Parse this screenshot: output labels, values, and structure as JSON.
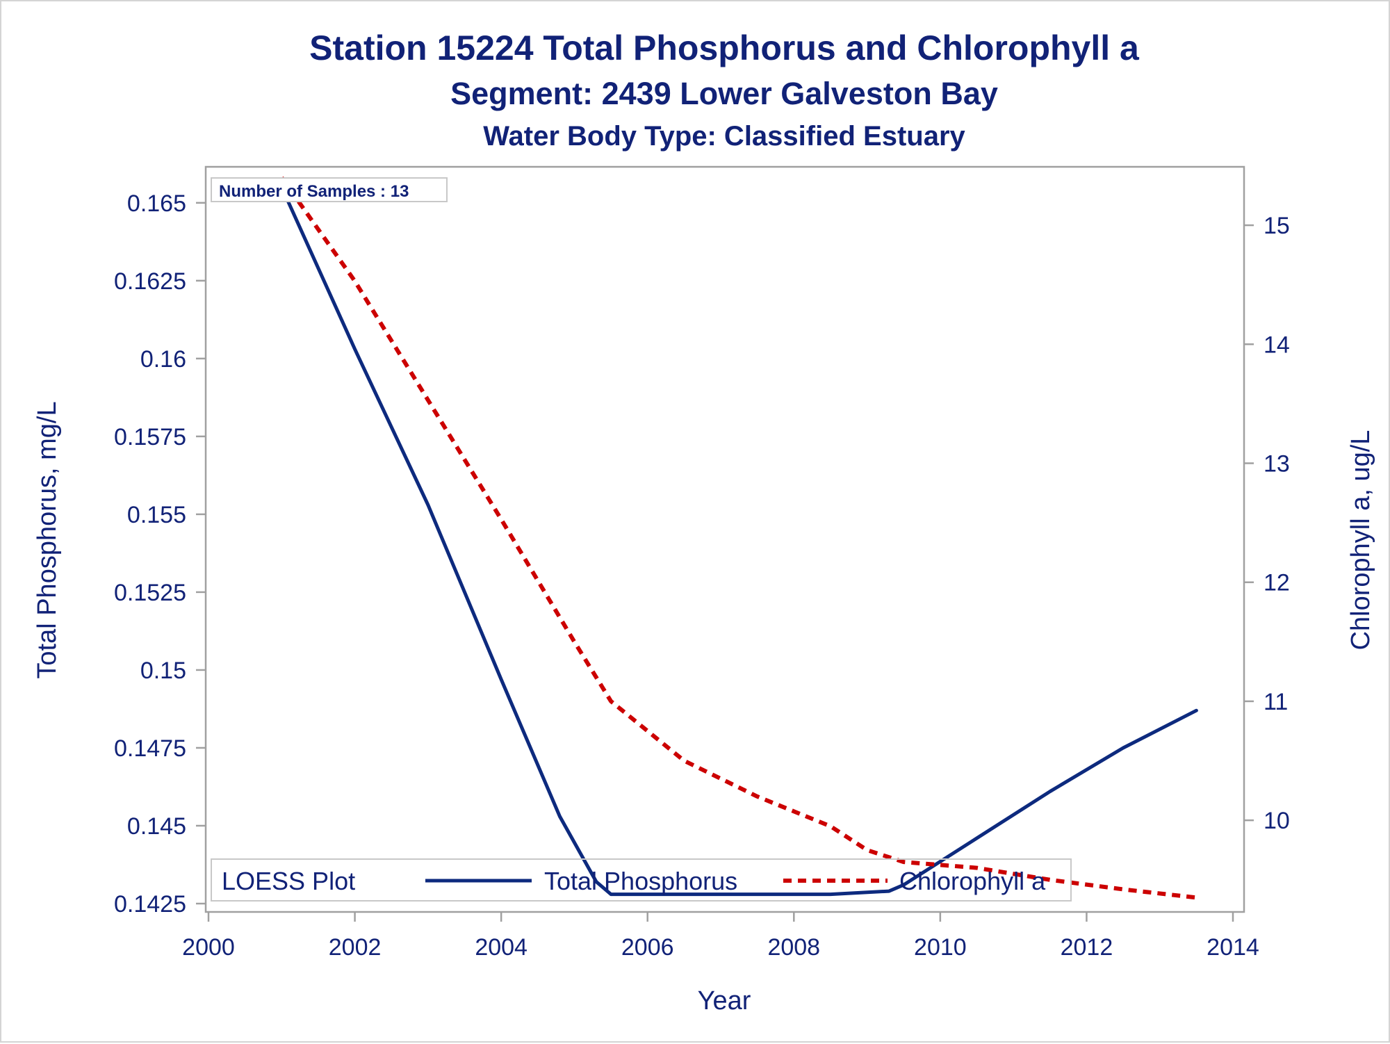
{
  "titles": {
    "line1": "Station 15224   Total Phosphorus and Chlorophyll a",
    "line2": "Segment: 2439  Lower Galveston Bay",
    "line3": "Water Body Type: Classified Estuary"
  },
  "annotation": "Number of Samples : 13",
  "legend": {
    "title": "LOESS Plot",
    "items": [
      "Total Phosphorus",
      "Chlorophyll a"
    ]
  },
  "colors": {
    "phosphorus": "#0d2a7e",
    "chlorophyll": "#cc0000",
    "text": "#112277",
    "frame": "#a0a0a0"
  },
  "chart_data": {
    "type": "line",
    "title": "Station 15224   Total Phosphorus and Chlorophyll a",
    "xlabel": "Year",
    "ylabel": "Total Phosphorus, mg/L",
    "y2label": "Chlorophyll a, ug/L",
    "xlim": [
      2000,
      2014
    ],
    "ylim": [
      0.1425,
      0.166
    ],
    "y2lim": [
      9.3,
      15.45
    ],
    "x_ticks": [
      "2000",
      "2002",
      "2004",
      "2006",
      "2008",
      "2010",
      "2012",
      "2014"
    ],
    "y_ticks": [
      "0.1425",
      "0.145",
      "0.1475",
      "0.15",
      "0.1525",
      "0.155",
      "0.1575",
      "0.16",
      "0.1625",
      "0.165"
    ],
    "y2_ticks": [
      "10",
      "11",
      "12",
      "13",
      "14",
      "15"
    ],
    "grid": false,
    "legend_position": "bottom",
    "series": [
      {
        "name": "Total Phosphorus",
        "axis": "left",
        "style": "solid",
        "x": [
          2001.0,
          2002.0,
          2003.0,
          2004.0,
          2004.8,
          2005.3,
          2005.5,
          2006.5,
          2007.5,
          2008.5,
          2009.3,
          2009.5,
          2010.5,
          2011.5,
          2012.5,
          2013.5
        ],
        "y": [
          0.1655,
          0.1603,
          0.1553,
          0.1497,
          0.1453,
          0.1432,
          0.1428,
          0.1428,
          0.1428,
          0.1428,
          0.1429,
          0.1431,
          0.1446,
          0.1461,
          0.1475,
          0.1487
        ]
      },
      {
        "name": "Chlorophyll a",
        "axis": "right",
        "style": "dashed",
        "x": [
          2001.0,
          2002.0,
          2003.0,
          2004.0,
          2005.0,
          2005.5,
          2006.5,
          2007.5,
          2008.5,
          2009.0,
          2009.5,
          2010.5,
          2011.5,
          2012.5,
          2013.5
        ],
        "y": [
          15.4,
          14.53,
          13.53,
          12.53,
          11.5,
          11.0,
          10.5,
          10.2,
          9.95,
          9.75,
          9.65,
          9.6,
          9.5,
          9.42,
          9.35
        ]
      }
    ]
  }
}
